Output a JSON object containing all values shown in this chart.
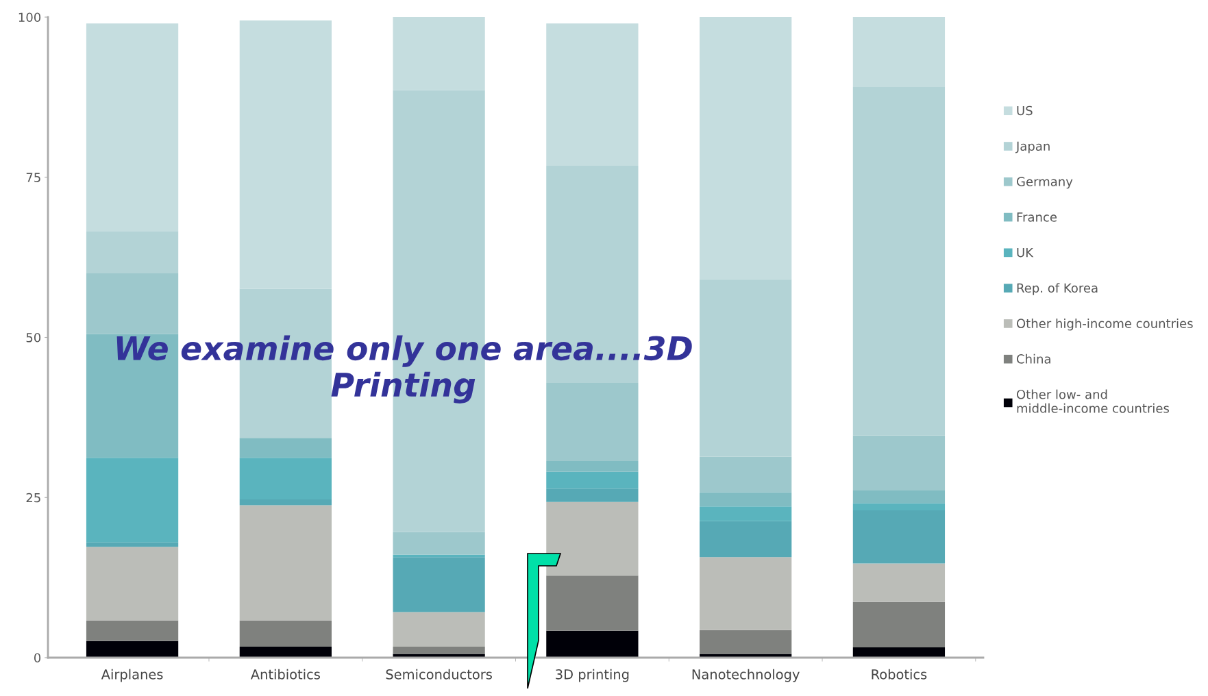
{
  "chart_data": {
    "type": "bar",
    "stacked": true,
    "categories": [
      "Airplanes",
      "Antibiotics",
      "Semiconductors",
      "3D printing",
      "Nanotechnology",
      "Robotics"
    ],
    "series": [
      {
        "name": "Other low- and middle-income countries",
        "color": "#000008",
        "values": [
          2.6,
          1.7,
          0.6,
          4.2,
          0.6,
          1.6
        ]
      },
      {
        "name": "China",
        "color": "#7f817e",
        "values": [
          3.2,
          4.1,
          1.1,
          8.6,
          3.7,
          7.1
        ]
      },
      {
        "name": "Other high-income countries",
        "color": "#bbbdb8",
        "values": [
          11.5,
          18.0,
          5.4,
          11.5,
          11.4,
          6.0
        ]
      },
      {
        "name": "Rep. of Korea",
        "color": "#56a9b5",
        "values": [
          0.7,
          0.9,
          8.6,
          2.1,
          5.6,
          8.3
        ]
      },
      {
        "name": "UK",
        "color": "#5ab4be",
        "values": [
          13.2,
          6.5,
          0.4,
          2.6,
          2.3,
          1.1
        ]
      },
      {
        "name": "France",
        "color": "#80bcc2",
        "values": [
          19.3,
          3.1,
          0,
          1.7,
          2.2,
          2.0
        ]
      },
      {
        "name": "Germany",
        "color": "#9dc8cc",
        "values": [
          9.5,
          0,
          3.5,
          12.2,
          5.6,
          8.6
        ]
      },
      {
        "name": "Japan",
        "color": "#b3d3d6",
        "values": [
          6.6,
          23.3,
          69.0,
          33.9,
          27.7,
          54.4
        ]
      },
      {
        "name": "US",
        "color": "#c5dddf",
        "values": [
          32.4,
          41.9,
          11.4,
          22.2,
          40.9,
          10.9
        ]
      }
    ],
    "ylim": [
      0,
      100
    ],
    "yticks": [
      0,
      25,
      50,
      75,
      100
    ],
    "grid": false,
    "legend": "right",
    "annotations": [
      "We examine only one area....3D Printing"
    ]
  }
}
